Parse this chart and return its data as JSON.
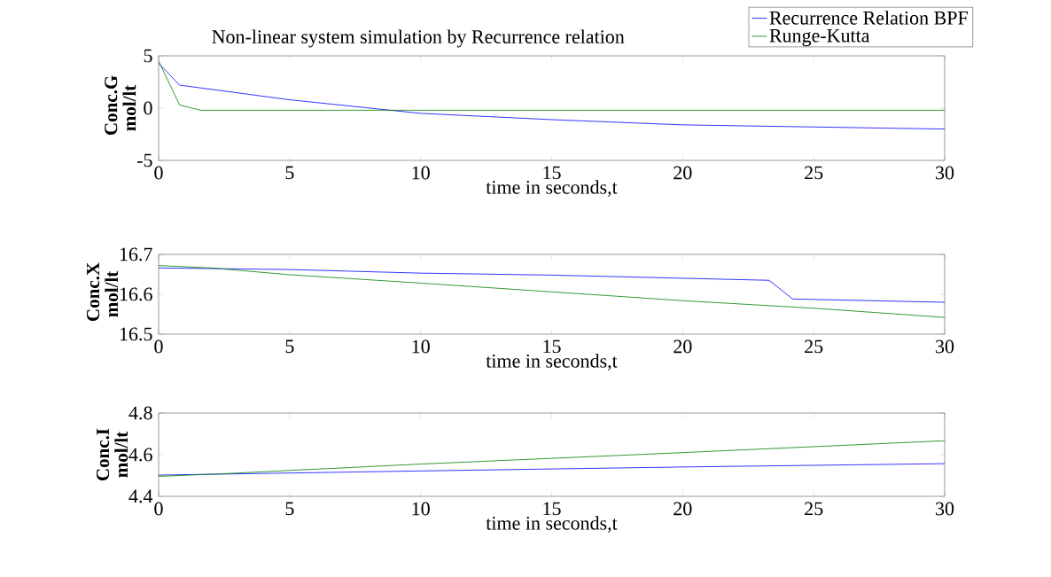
{
  "chart_data": [
    {
      "type": "line",
      "title": "Non-linear system simulation by Recurrence relation",
      "xlabel": "time in seconds,t",
      "ylabel": "Conc.G mol/lt",
      "xlim": [
        0,
        30
      ],
      "xticks": [
        0,
        5,
        10,
        15,
        20,
        25,
        30
      ],
      "ylim": [
        -5,
        5
      ],
      "yticks": [
        -5,
        0,
        5
      ],
      "legend": "top right",
      "grid": false,
      "series": [
        {
          "name": "Recurrence Relation BPF",
          "color": "#0000ff",
          "x": [
            0,
            0.8,
            5,
            10,
            15,
            20,
            25,
            30
          ],
          "values": [
            4.3,
            2.2,
            0.8,
            -0.5,
            -1.1,
            -1.6,
            -1.8,
            -2
          ]
        },
        {
          "name": "Runge-Kutta",
          "color": "#008000",
          "x": [
            0,
            0.8,
            1.6,
            30
          ],
          "values": [
            4.5,
            0.3,
            -0.2,
            -0.2
          ]
        }
      ]
    },
    {
      "type": "line",
      "xlabel": "time in seconds,t",
      "ylabel": "Conc.X mol/lt",
      "xlim": [
        0,
        30
      ],
      "xticks": [
        0,
        5,
        10,
        15,
        20,
        25,
        30
      ],
      "ylim": [
        16.5,
        16.7
      ],
      "yticks": [
        16.5,
        16.6,
        16.7
      ],
      "grid": false,
      "series": [
        {
          "color": "#0000ff",
          "x": [
            0,
            5,
            10,
            15,
            23.3,
            24.2,
            25,
            30
          ],
          "values": [
            16.666,
            16.662,
            16.653,
            16.648,
            16.635,
            16.588,
            16.587,
            16.58
          ]
        },
        {
          "color": "#008000",
          "x": [
            0,
            2,
            5,
            10,
            15,
            20,
            25,
            30
          ],
          "values": [
            16.672,
            16.666,
            16.649,
            16.628,
            16.606,
            16.584,
            16.565,
            16.542
          ]
        }
      ]
    },
    {
      "type": "line",
      "xlabel": "time in seconds,t",
      "ylabel": "Conc.I mol/lt",
      "xlim": [
        0,
        30
      ],
      "xticks": [
        0,
        5,
        10,
        15,
        20,
        25,
        30
      ],
      "ylim": [
        4.4,
        4.8
      ],
      "yticks": [
        4.4,
        4.6,
        4.8
      ],
      "grid": false,
      "series": [
        {
          "color": "#0000ff",
          "x": [
            0,
            10,
            20,
            30
          ],
          "values": [
            4.502,
            4.522,
            4.541,
            4.557
          ]
        },
        {
          "color": "#008000",
          "x": [
            0,
            2,
            10,
            20,
            30
          ],
          "values": [
            4.496,
            4.506,
            4.555,
            4.61,
            4.667
          ]
        }
      ]
    }
  ]
}
